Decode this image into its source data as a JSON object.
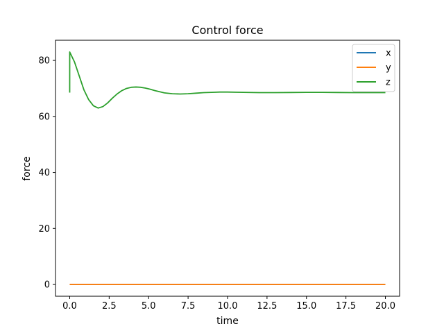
{
  "chart_data": {
    "type": "line",
    "title": "Control force",
    "xlabel": "time",
    "ylabel": "force",
    "xlim": [
      -0.9,
      20.9
    ],
    "ylim": [
      -4.2,
      87.2
    ],
    "xticks": [
      0.0,
      2.5,
      5.0,
      7.5,
      10.0,
      12.5,
      15.0,
      17.5,
      20.0
    ],
    "xtick_labels": [
      "0.0",
      "2.5",
      "5.0",
      "7.5",
      "10.0",
      "12.5",
      "15.0",
      "17.5",
      "20.0"
    ],
    "yticks": [
      0,
      20,
      40,
      60,
      80
    ],
    "ytick_labels": [
      "0",
      "20",
      "40",
      "60",
      "80"
    ],
    "grid": false,
    "legend_position": "top-right",
    "series": [
      {
        "name": "x",
        "color": "#1f77b4",
        "x": [
          0,
          20
        ],
        "y": [
          0,
          0
        ]
      },
      {
        "name": "y",
        "color": "#ff7f0e",
        "x": [
          0,
          20
        ],
        "y": [
          0,
          0
        ]
      },
      {
        "name": "z",
        "color": "#2ca02c",
        "x": [
          0,
          0.001,
          0.3,
          0.6,
          0.9,
          1.2,
          1.5,
          1.8,
          2.1,
          2.4,
          2.7,
          3.0,
          3.3,
          3.6,
          3.9,
          4.2,
          4.5,
          4.8,
          5.1,
          5.4,
          5.7,
          6.0,
          6.5,
          7.0,
          7.5,
          8.0,
          8.5,
          9.0,
          9.5,
          10.0,
          11.0,
          12.0,
          13.0,
          14.0,
          15.0,
          16.0,
          17.0,
          18.0,
          19.0,
          20.0
        ],
        "y": [
          68.5,
          83.0,
          79.5,
          74.5,
          69.5,
          66.0,
          63.8,
          63.0,
          63.5,
          64.8,
          66.5,
          68.0,
          69.2,
          70.0,
          70.4,
          70.5,
          70.4,
          70.1,
          69.7,
          69.2,
          68.8,
          68.4,
          68.1,
          68.0,
          68.1,
          68.3,
          68.5,
          68.6,
          68.7,
          68.7,
          68.6,
          68.5,
          68.5,
          68.55,
          68.6,
          68.6,
          68.55,
          68.5,
          68.5,
          68.5
        ]
      }
    ]
  }
}
